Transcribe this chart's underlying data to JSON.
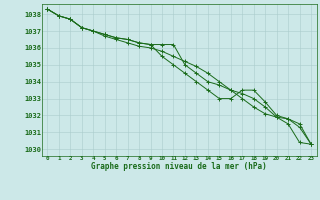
{
  "x": [
    0,
    1,
    2,
    3,
    4,
    5,
    6,
    7,
    8,
    9,
    10,
    11,
    12,
    13,
    14,
    15,
    16,
    17,
    18,
    19,
    20,
    21,
    22,
    23
  ],
  "line1": [
    1038.3,
    1037.9,
    1037.7,
    1037.2,
    1037.0,
    1036.8,
    1036.6,
    1036.5,
    1036.3,
    1036.2,
    1036.2,
    1036.2,
    1035.0,
    1034.5,
    1034.0,
    1033.8,
    1033.5,
    1033.3,
    1033.0,
    1032.5,
    1031.9,
    1031.5,
    1030.4,
    1030.3
  ],
  "line2": [
    1038.3,
    1037.9,
    1037.7,
    1037.2,
    1037.0,
    1036.8,
    1036.6,
    1036.5,
    1036.3,
    1036.2,
    1035.5,
    1035.0,
    1034.5,
    1034.0,
    1033.5,
    1033.0,
    1033.0,
    1033.5,
    1033.5,
    1032.8,
    1032.0,
    1031.8,
    1031.3,
    1030.3
  ],
  "line3": [
    1038.3,
    1037.9,
    1037.7,
    1037.2,
    1037.0,
    1036.7,
    1036.5,
    1036.3,
    1036.1,
    1036.0,
    1035.8,
    1035.5,
    1035.2,
    1034.9,
    1034.5,
    1034.0,
    1033.5,
    1033.0,
    1032.5,
    1032.1,
    1031.9,
    1031.8,
    1031.5,
    1030.3
  ],
  "line_color": "#1a6b1a",
  "bg_color": "#cce8e8",
  "grid_color": "#aacccc",
  "axis_color": "#1a6b1a",
  "xlabel": "Graphe pression niveau de la mer (hPa)",
  "ylim_min": 1029.6,
  "ylim_max": 1038.6,
  "yticks": [
    1030,
    1031,
    1032,
    1033,
    1034,
    1035,
    1036,
    1037,
    1038
  ],
  "xticks": [
    0,
    1,
    2,
    3,
    4,
    5,
    6,
    7,
    8,
    9,
    10,
    11,
    12,
    13,
    14,
    15,
    16,
    17,
    18,
    19,
    20,
    21,
    22,
    23
  ]
}
